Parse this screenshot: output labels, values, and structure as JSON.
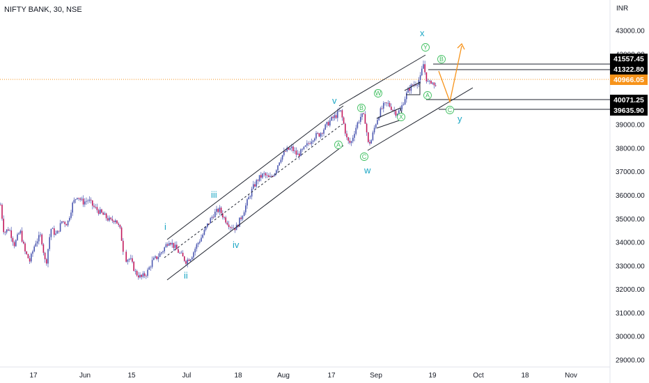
{
  "header": {
    "title": "NIFTY BANK, 30, NSE",
    "currency": "INR"
  },
  "colors": {
    "candle": "#4a56b0",
    "channel": "#1e222d",
    "wave_label": "#1aa6c4",
    "circle_label": "#3fbf5f",
    "projection": "#f7931a",
    "current_price": "#f7931a",
    "price_tag_bg": "#000000",
    "price_tag_text": "#ffffff"
  },
  "chart_data": {
    "type": "candlestick",
    "title": "NIFTY BANK, 30, NSE",
    "ylabel": "INR",
    "y_ticks": [
      29000,
      30000,
      31000,
      32000,
      33000,
      34000,
      35000,
      36000,
      37000,
      38000,
      39000,
      40000,
      41000,
      42000,
      43000
    ],
    "y_tick_labels": [
      "29000.00",
      "30000.00",
      "31000.00",
      "32000.00",
      "33000.00",
      "34000.00",
      "35000.00",
      "36000.00",
      "37000.00",
      "38000.00",
      "39000.00",
      "40000.00",
      "41000.00",
      "42000.00",
      "43000.00"
    ],
    "x_tick_labels": [
      "17",
      "Jun",
      "15",
      "Jul",
      "18",
      "Aug",
      "17",
      "Sep",
      "19",
      "Oct",
      "18",
      "Nov"
    ],
    "price_levels": [
      {
        "label": "41557.45",
        "value": 41557.45
      },
      {
        "label": "41322.80",
        "value": 41322.8
      },
      {
        "label": "40071.25",
        "value": 40071.25
      },
      {
        "label": "39635.90",
        "value": 39635.9
      }
    ],
    "current_price": {
      "label": "40966.05",
      "value": 40966.05
    },
    "price_path": [
      [
        0,
        35600
      ],
      [
        5,
        34400
      ],
      [
        12,
        34600
      ],
      [
        20,
        33900
      ],
      [
        28,
        34500
      ],
      [
        35,
        33600
      ],
      [
        42,
        33200
      ],
      [
        50,
        34000
      ],
      [
        58,
        34300
      ],
      [
        65,
        33000
      ],
      [
        72,
        34600
      ],
      [
        80,
        34300
      ],
      [
        88,
        34900
      ],
      [
        96,
        34800
      ],
      [
        103,
        35600
      ],
      [
        110,
        36000
      ],
      [
        118,
        35700
      ],
      [
        126,
        35800
      ],
      [
        134,
        35500
      ],
      [
        142,
        35300
      ],
      [
        150,
        35100
      ],
      [
        158,
        34900
      ],
      [
        165,
        35000
      ],
      [
        172,
        34500
      ],
      [
        178,
        33300
      ],
      [
        186,
        33300
      ],
      [
        194,
        32700
      ],
      [
        202,
        32500
      ],
      [
        210,
        32700
      ],
      [
        218,
        33200
      ],
      [
        226,
        33400
      ],
      [
        234,
        33700
      ],
      [
        242,
        34100
      ],
      [
        250,
        33800
      ],
      [
        258,
        33500
      ],
      [
        266,
        33200
      ],
      [
        274,
        33400
      ],
      [
        282,
        33900
      ],
      [
        290,
        34300
      ],
      [
        298,
        34800
      ],
      [
        306,
        35200
      ],
      [
        314,
        35400
      ],
      [
        322,
        35000
      ],
      [
        330,
        34700
      ],
      [
        338,
        34600
      ],
      [
        346,
        35100
      ],
      [
        354,
        35700
      ],
      [
        362,
        36300
      ],
      [
        370,
        36700
      ],
      [
        378,
        36900
      ],
      [
        386,
        36700
      ],
      [
        394,
        37000
      ],
      [
        402,
        37600
      ],
      [
        410,
        37900
      ],
      [
        418,
        38000
      ],
      [
        426,
        37700
      ],
      [
        434,
        37900
      ],
      [
        442,
        38200
      ],
      [
        450,
        38500
      ],
      [
        458,
        38600
      ],
      [
        466,
        38900
      ],
      [
        474,
        39200
      ],
      [
        482,
        39400
      ],
      [
        488,
        39600
      ],
      [
        493,
        39000
      ],
      [
        498,
        38300
      ],
      [
        503,
        38200
      ],
      [
        508,
        38700
      ],
      [
        513,
        39100
      ],
      [
        518,
        39400
      ],
      [
        523,
        39300
      ],
      [
        528,
        38200
      ],
      [
        532,
        38300
      ],
      [
        538,
        39000
      ],
      [
        544,
        39500
      ],
      [
        550,
        39800
      ],
      [
        556,
        39900
      ],
      [
        562,
        39700
      ],
      [
        568,
        39500
      ],
      [
        574,
        39600
      ],
      [
        580,
        40100
      ],
      [
        586,
        40500
      ],
      [
        592,
        40700
      ],
      [
        598,
        40800
      ],
      [
        603,
        41000
      ],
      [
        607,
        41600
      ],
      [
        611,
        41000
      ],
      [
        615,
        40700
      ],
      [
        619,
        40900
      ],
      [
        623,
        40600
      ],
      [
        627,
        40966
      ]
    ],
    "waves": {
      "impulse": [
        "i",
        "ii",
        "iii",
        "iv",
        "v"
      ],
      "corrective": [
        "w",
        "x",
        "y"
      ],
      "sub_waves": [
        "A",
        "B",
        "C",
        "W",
        "X",
        "Y"
      ]
    },
    "grid": false
  },
  "price_axis": {
    "currency_label": "INR"
  }
}
